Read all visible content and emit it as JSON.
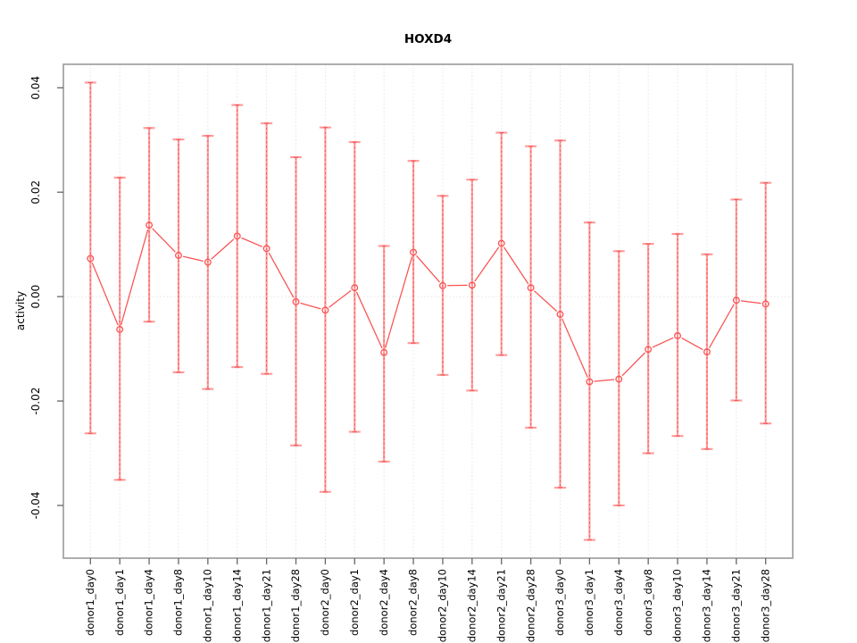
{
  "chart_data": {
    "type": "line",
    "title": "HOXD4",
    "ylabel": "activity",
    "xlabel": "",
    "legend": "none",
    "grid": {
      "vertical_dotted_per_category": true,
      "zero_line_dotted": true
    },
    "categories": [
      "donor1_day0",
      "donor1_day1",
      "donor1_day4",
      "donor1_day8",
      "donor1_day10",
      "donor1_day14",
      "donor1_day21",
      "donor1_day28",
      "donor2_day0",
      "donor2_day1",
      "donor2_day4",
      "donor2_day8",
      "donor2_day10",
      "donor2_day14",
      "donor2_day21",
      "donor2_day28",
      "donor3_day0",
      "donor3_day1",
      "donor3_day4",
      "donor3_day8",
      "donor3_day10",
      "donor3_day14",
      "donor3_day21",
      "donor3_day28"
    ],
    "series": [
      {
        "name": "activity",
        "values": [
          0.0073,
          -0.0063,
          0.0137,
          0.0079,
          0.0066,
          0.0116,
          0.0092,
          -0.001,
          -0.0026,
          0.0017,
          -0.0107,
          0.0085,
          0.0021,
          0.0022,
          0.0102,
          0.0017,
          -0.0034,
          -0.0163,
          -0.0158,
          -0.0101,
          -0.0075,
          -0.0106,
          -0.0007,
          -0.0014
        ]
      }
    ],
    "error_high": [
      0.041,
      0.0228,
      0.0323,
      0.0301,
      0.0308,
      0.0367,
      0.0332,
      0.0267,
      0.0324,
      0.0296,
      0.0097,
      0.026,
      0.0193,
      0.0224,
      0.0314,
      0.0288,
      0.0299,
      0.0142,
      0.0087,
      0.0101,
      0.012,
      0.0081,
      0.0186,
      0.0218
    ],
    "error_low": [
      -0.0262,
      -0.0351,
      -0.0048,
      -0.0145,
      -0.0177,
      -0.0135,
      -0.0148,
      -0.0285,
      -0.0374,
      -0.0259,
      -0.0316,
      -0.0089,
      -0.015,
      -0.018,
      -0.0112,
      -0.0251,
      -0.0366,
      -0.0466,
      -0.04,
      -0.03,
      -0.0267,
      -0.0292,
      -0.0199,
      -0.0243
    ],
    "yticks": [
      0.04,
      0.02,
      0,
      -0.02,
      -0.04
    ],
    "ytick_labels": [
      "0.04",
      "0.02",
      "0.00",
      "-0.02",
      "-0.04"
    ],
    "ylim": [
      -0.0501,
      0.0445
    ],
    "colors": {
      "point_line": "#fa5252",
      "error_bar": "#ff9e9e",
      "error_bar_dash": "#f15a5a",
      "grid": "#e4e4e4",
      "axis_box": "#9a9a9a",
      "tick": "#666666",
      "text": "#000000"
    }
  }
}
